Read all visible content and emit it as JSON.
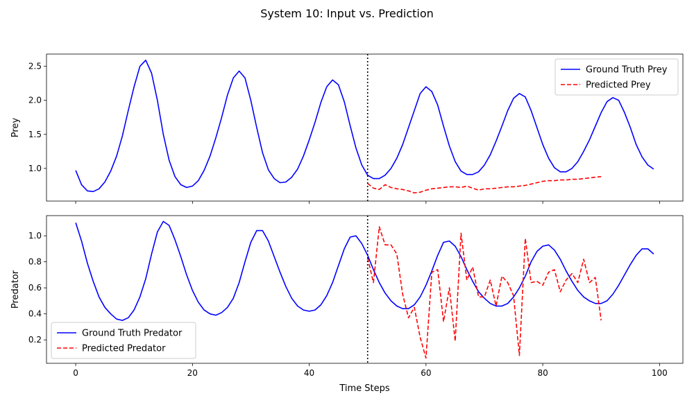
{
  "suptitle": "System 10: Input vs. Prediction",
  "xlabel": "Time Steps",
  "xlim": [
    -5,
    104
  ],
  "x_ticks": [
    0,
    20,
    40,
    60,
    80,
    100
  ],
  "vline_x": 50,
  "colors": {
    "ground_truth": "#0000ff",
    "predicted": "#ff0000",
    "vline": "#000000"
  },
  "chart_data": [
    {
      "type": "line",
      "ylabel": "Prey",
      "ylim": [
        0.52,
        2.68
      ],
      "y_ticks": [
        1.0,
        1.5,
        2.0,
        2.5
      ],
      "legend_position": "upper-right",
      "series": [
        {
          "name": "Ground Truth Prey",
          "style": "solid",
          "x_start": 0,
          "values": [
            0.97,
            0.76,
            0.67,
            0.66,
            0.7,
            0.8,
            0.96,
            1.18,
            1.48,
            1.85,
            2.2,
            2.5,
            2.59,
            2.4,
            2.0,
            1.5,
            1.12,
            0.88,
            0.76,
            0.72,
            0.74,
            0.82,
            0.97,
            1.18,
            1.45,
            1.75,
            2.08,
            2.33,
            2.43,
            2.33,
            2.0,
            1.6,
            1.23,
            0.98,
            0.85,
            0.79,
            0.8,
            0.87,
            0.99,
            1.18,
            1.42,
            1.68,
            1.97,
            2.2,
            2.3,
            2.23,
            1.98,
            1.63,
            1.3,
            1.05,
            0.9,
            0.85,
            0.85,
            0.9,
            1.0,
            1.15,
            1.35,
            1.6,
            1.85,
            2.1,
            2.2,
            2.13,
            1.93,
            1.62,
            1.33,
            1.1,
            0.96,
            0.91,
            0.91,
            0.95,
            1.05,
            1.2,
            1.4,
            1.62,
            1.85,
            2.03,
            2.1,
            2.05,
            1.85,
            1.6,
            1.35,
            1.15,
            1.01,
            0.95,
            0.95,
            1.0,
            1.1,
            1.25,
            1.42,
            1.62,
            1.82,
            1.98,
            2.04,
            2.0,
            1.82,
            1.6,
            1.35,
            1.17,
            1.05,
            0.99
          ]
        },
        {
          "name": "Predicted Prey",
          "style": "dashed",
          "x_start": 50,
          "values": [
            0.78,
            0.71,
            0.69,
            0.76,
            0.72,
            0.7,
            0.69,
            0.67,
            0.64,
            0.65,
            0.68,
            0.7,
            0.71,
            0.72,
            0.73,
            0.73,
            0.72,
            0.74,
            0.71,
            0.68,
            0.7,
            0.7,
            0.71,
            0.72,
            0.73,
            0.73,
            0.74,
            0.75,
            0.77,
            0.79,
            0.81,
            0.82,
            0.82,
            0.83,
            0.83,
            0.84,
            0.84,
            0.85,
            0.86,
            0.87,
            0.88
          ]
        }
      ]
    },
    {
      "type": "line",
      "ylabel": "Predator",
      "ylim": [
        0.02,
        1.155
      ],
      "y_ticks": [
        0.2,
        0.4,
        0.6,
        0.8,
        1.0
      ],
      "legend_position": "lower-left",
      "series": [
        {
          "name": "Ground Truth Predator",
          "style": "solid",
          "x_start": 0,
          "values": [
            1.1,
            0.96,
            0.79,
            0.65,
            0.53,
            0.45,
            0.4,
            0.36,
            0.35,
            0.37,
            0.43,
            0.53,
            0.67,
            0.86,
            1.03,
            1.11,
            1.08,
            0.97,
            0.84,
            0.7,
            0.58,
            0.49,
            0.43,
            0.4,
            0.39,
            0.41,
            0.45,
            0.52,
            0.64,
            0.8,
            0.95,
            1.04,
            1.04,
            0.96,
            0.84,
            0.72,
            0.61,
            0.52,
            0.46,
            0.43,
            0.42,
            0.43,
            0.47,
            0.54,
            0.64,
            0.77,
            0.9,
            0.99,
            1.0,
            0.94,
            0.85,
            0.74,
            0.64,
            0.56,
            0.5,
            0.46,
            0.44,
            0.44,
            0.47,
            0.53,
            0.62,
            0.73,
            0.85,
            0.95,
            0.96,
            0.92,
            0.84,
            0.74,
            0.65,
            0.57,
            0.52,
            0.48,
            0.46,
            0.46,
            0.48,
            0.53,
            0.6,
            0.69,
            0.8,
            0.88,
            0.92,
            0.93,
            0.89,
            0.82,
            0.73,
            0.65,
            0.58,
            0.53,
            0.5,
            0.48,
            0.48,
            0.5,
            0.55,
            0.62,
            0.7,
            0.78,
            0.85,
            0.9,
            0.9,
            0.86
          ]
        },
        {
          "name": "Predicted Predator",
          "style": "dashed",
          "x_start": 50,
          "values": [
            0.83,
            0.64,
            1.07,
            0.93,
            0.93,
            0.86,
            0.55,
            0.37,
            0.45,
            0.22,
            0.06,
            0.72,
            0.74,
            0.34,
            0.6,
            0.19,
            1.02,
            0.66,
            0.76,
            0.53,
            0.53,
            0.66,
            0.46,
            0.69,
            0.64,
            0.54,
            0.08,
            0.98,
            0.64,
            0.65,
            0.62,
            0.72,
            0.74,
            0.57,
            0.66,
            0.71,
            0.64,
            0.82,
            0.64,
            0.68,
            0.35
          ]
        }
      ]
    }
  ]
}
